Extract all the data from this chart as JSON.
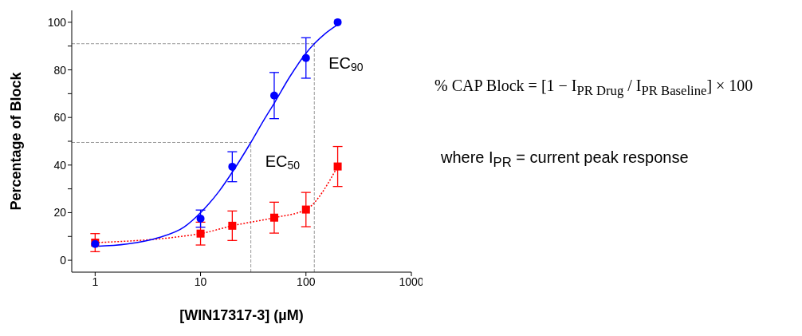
{
  "chart_data": {
    "type": "scatter",
    "xlabel": "[WIN17317-3] (µM)",
    "ylabel": "Percentage of Block",
    "log": "x",
    "xlim": [
      0.6,
      1000
    ],
    "xticks": [
      1,
      10,
      100,
      1000
    ],
    "ylim": [
      -5,
      105
    ],
    "yticks": [
      0,
      {
        "value": 10,
        "label": null
      },
      20,
      {
        "value": 30,
        "label": null
      },
      40,
      {
        "value": 50,
        "label": null
      },
      60,
      {
        "value": 70,
        "label": null
      },
      80,
      {
        "value": 90,
        "label": null
      },
      100
    ],
    "series": [
      {
        "color": "#0000ff",
        "marker": "circle",
        "x": [
          1,
          10,
          20,
          50,
          100,
          200
        ],
        "values": [
          6.8,
          17.5,
          39.3,
          69.2,
          85.0,
          100
        ],
        "errors": [
          null,
          3.6,
          6.3,
          9.7,
          8.5,
          null
        ]
      },
      {
        "type": "line",
        "color": "#ff0000",
        "marker": "square",
        "line_style": "dotted",
        "x": [
          1,
          10,
          20,
          50,
          100,
          200
        ],
        "values": [
          7.4,
          11.2,
          14.5,
          17.9,
          21.3,
          39.4
        ],
        "errors": [
          3.8,
          4.8,
          6.2,
          6.5,
          7.2,
          8.4
        ]
      },
      {
        "type": "line",
        "color": "#0000ff",
        "marker": "none",
        "line_style": "solid",
        "x": [
          1,
          2,
          4,
          7,
          10,
          15,
          20,
          30,
          40,
          50,
          70,
          100,
          120,
          150,
          200
        ],
        "values": [
          5.8,
          6.8,
          9.5,
          14,
          20,
          29,
          37,
          49.5,
          59,
          66,
          77,
          87,
          91,
          95,
          99
        ]
      }
    ],
    "ref_lines": [
      {
        "axis": "y",
        "value": 49.5,
        "color": "#999999",
        "line_style": "dashed"
      },
      {
        "axis": "x",
        "value": 30,
        "color": "#999999",
        "line_style": "dashed"
      },
      {
        "axis": "y",
        "value": 91,
        "color": "#999999",
        "line_style": "dashed"
      },
      {
        "axis": "x",
        "value": 120,
        "color": "#999999",
        "line_style": "dashed"
      }
    ],
    "annotations": [
      {
        "text": "EC$_{50}$",
        "x": 30,
        "y": 49.5
      },
      {
        "text": "EC$_{90}$",
        "x": 120,
        "y": 91
      },
      "% CAP Block = [1 − I$_{PR Drug}$ / I$_{PR Baseline}$] × 100",
      "where I$_{PR}$ = current peak response"
    ]
  }
}
